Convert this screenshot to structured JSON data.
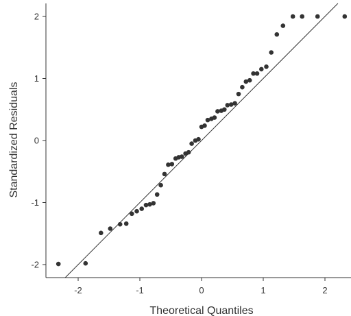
{
  "chart_data": {
    "type": "scatter",
    "title": "",
    "xlabel": "Theoretical Quantiles",
    "ylabel": "Standardized Residuals",
    "xlim": [
      -2.5,
      2.4
    ],
    "ylim": [
      -2.2,
      2.1
    ],
    "x_ticks": [
      -2,
      -1,
      0,
      1,
      2
    ],
    "y_ticks": [
      -2,
      -1,
      0,
      1,
      2
    ],
    "x_tick_labels": [
      "-2",
      "-1",
      "0",
      "1",
      "2"
    ],
    "y_tick_labels": [
      "-2",
      "-1",
      "0",
      "1",
      "2"
    ],
    "grid": false,
    "reference_line": {
      "slope": 1.0,
      "intercept": 0.0
    },
    "point_color": "#333333",
    "line_color": "#333333",
    "series": [
      {
        "x": [
          -2.32,
          -1.88,
          -1.63,
          -1.48,
          -1.32,
          -1.22,
          -1.13,
          -1.05,
          -0.97,
          -0.9,
          -0.84,
          -0.78,
          -0.72,
          -0.66,
          -0.6,
          -0.54,
          -0.48,
          -0.42,
          -0.37,
          -0.32,
          -0.26,
          -0.21,
          -0.16,
          -0.1,
          -0.05,
          0.0,
          0.05,
          0.1,
          0.16,
          0.21,
          0.26,
          0.32,
          0.37,
          0.42,
          0.48,
          0.54,
          0.6,
          0.66,
          0.72,
          0.78,
          0.84,
          0.9,
          0.97,
          1.05,
          1.13,
          1.22,
          1.32,
          1.48,
          1.63,
          1.88,
          2.32
        ],
        "y": [
          -1.99,
          -1.98,
          -1.49,
          -1.42,
          -1.35,
          -1.34,
          -1.18,
          -1.14,
          -1.1,
          -1.04,
          -1.03,
          -1.01,
          -0.87,
          -0.72,
          -0.54,
          -0.39,
          -0.38,
          -0.29,
          -0.27,
          -0.26,
          -0.21,
          -0.19,
          -0.05,
          0.0,
          0.02,
          0.22,
          0.24,
          0.33,
          0.35,
          0.37,
          0.47,
          0.48,
          0.5,
          0.57,
          0.58,
          0.6,
          0.75,
          0.86,
          0.95,
          0.97,
          1.08,
          1.08,
          1.15,
          1.19,
          1.42,
          1.71,
          1.85,
          2.0,
          2.0,
          2.0,
          2.0
        ]
      }
    ]
  }
}
